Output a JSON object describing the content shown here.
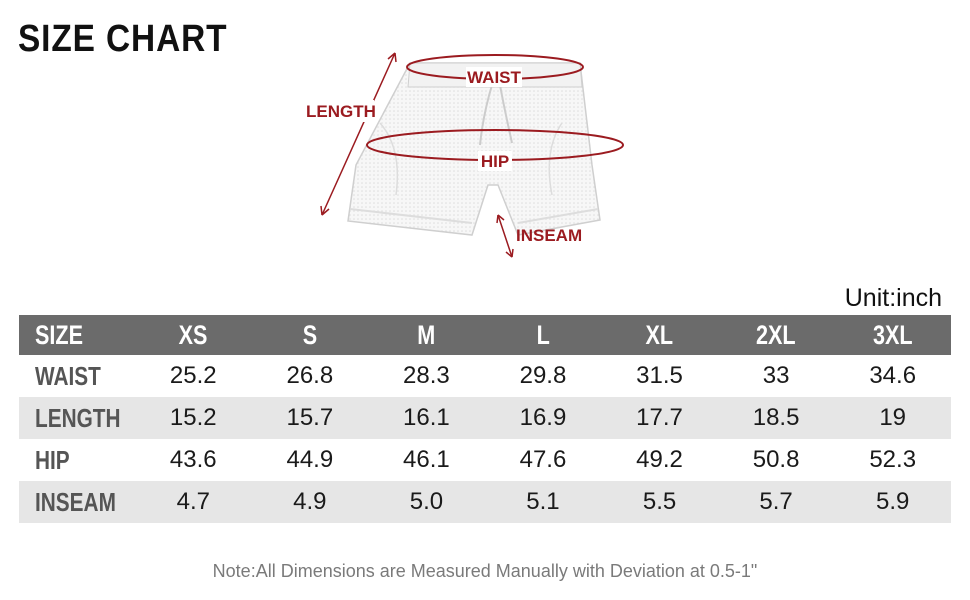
{
  "title": "SIZE CHART",
  "diagram": {
    "waist_label": "WAIST",
    "length_label": "LENGTH",
    "hip_label": "HIP",
    "inseam_label": "INSEAM",
    "label_color": "#9b1b20"
  },
  "unit": "Unit:inch",
  "table": {
    "columns": [
      "SIZE",
      "XS",
      "S",
      "M",
      "L",
      "XL",
      "2XL",
      "3XL"
    ],
    "rows": [
      {
        "label": "WAIST",
        "values": [
          "25.2",
          "26.8",
          "28.3",
          "29.8",
          "31.5",
          "33",
          "34.6"
        ]
      },
      {
        "label": "LENGTH",
        "values": [
          "15.2",
          "15.7",
          "16.1",
          "16.9",
          "17.7",
          "18.5",
          "19"
        ]
      },
      {
        "label": "HIP",
        "values": [
          "43.6",
          "44.9",
          "46.1",
          "47.6",
          "49.2",
          "50.8",
          "52.3"
        ]
      },
      {
        "label": "INSEAM",
        "values": [
          "4.7",
          "4.9",
          "5.0",
          "5.1",
          "5.5",
          "5.7",
          "5.9"
        ]
      }
    ],
    "header_color": "#6b6b6b",
    "alt_row_color": "#e6e6e6"
  },
  "note": "Note:All Dimensions are Measured Manually with Deviation at 0.5-1\""
}
